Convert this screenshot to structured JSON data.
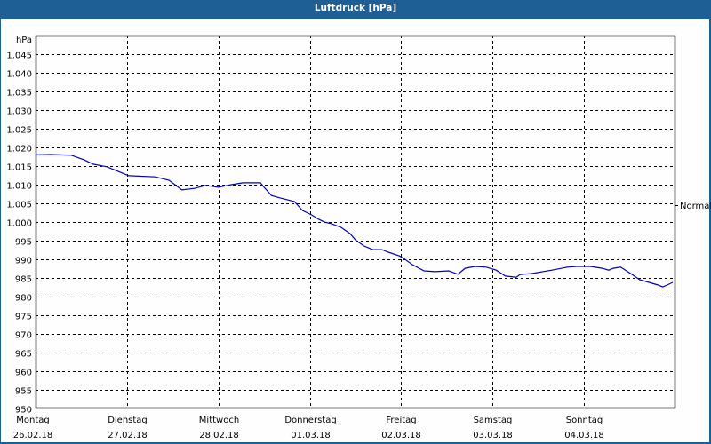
{
  "window": {
    "title": "Luftdruck [hPa]"
  },
  "chart": {
    "unit_label": "hPa",
    "reference_label": "Normal",
    "y_ticks": [
      "1.045",
      "1.040",
      "1.035",
      "1.030",
      "1.025",
      "1.020",
      "1.015",
      "1.010",
      "1.005",
      "1.000",
      "995",
      "990",
      "985",
      "980",
      "975",
      "970",
      "965",
      "960",
      "955",
      "950"
    ],
    "x_ticks": [
      {
        "day": "Montag",
        "date": "26.02.18"
      },
      {
        "day": "Dienstag",
        "date": "27.02.18"
      },
      {
        "day": "Mittwoch",
        "date": "28.02.18"
      },
      {
        "day": "Donnerstag",
        "date": "01.03.18"
      },
      {
        "day": "Freitag",
        "date": "02.03.18"
      },
      {
        "day": "Samstag",
        "date": "03.03.18"
      },
      {
        "day": "Sonntag",
        "date": "04.03.18"
      }
    ],
    "line_color": "#0000c0"
  },
  "chart_data": {
    "type": "line",
    "title": "Luftdruck [hPa]",
    "xlabel": "",
    "ylabel": "hPa",
    "ylim": [
      950,
      1050
    ],
    "grid": true,
    "annotations": [
      {
        "label": "Normal",
        "y": 1001
      }
    ],
    "x_tick_labels": [
      "Montag 26.02.18",
      "Dienstag 27.02.18",
      "Mittwoch 28.02.18",
      "Donnerstag 01.03.18",
      "Freitag 02.03.18",
      "Samstag 03.03.18",
      "Sonntag 04.03.18"
    ],
    "series": [
      {
        "name": "Luftdruck",
        "x_days": [
          0.0,
          0.17,
          0.39,
          0.53,
          0.63,
          0.78,
          0.97,
          1.02,
          1.31,
          1.46,
          1.6,
          1.74,
          1.86,
          2.0,
          2.14,
          2.27,
          2.46,
          2.5,
          2.58,
          2.68,
          2.83,
          2.92,
          3.02,
          3.1,
          3.16,
          3.24,
          3.34,
          3.44,
          3.5,
          3.59,
          3.69,
          3.79,
          3.86,
          3.98,
          4.03,
          4.12,
          4.25,
          4.37,
          4.52,
          4.62,
          4.7,
          4.81,
          4.93,
          5.04,
          5.14,
          5.26,
          5.3,
          5.43,
          5.65,
          5.82,
          5.92,
          6.07,
          6.2,
          6.27,
          6.32,
          6.4,
          6.51,
          6.61,
          6.71,
          6.81,
          6.86,
          6.91,
          6.97
        ],
        "values": [
          1018.0,
          1018.1,
          1017.9,
          1016.7,
          1015.5,
          1014.8,
          1012.9,
          1012.4,
          1012.1,
          1011.2,
          1008.6,
          1009.0,
          1009.8,
          1009.3,
          1010.0,
          1010.5,
          1010.5,
          1009.3,
          1007.1,
          1006.4,
          1005.5,
          1003.1,
          1001.9,
          1000.7,
          1000.0,
          999.5,
          998.6,
          996.9,
          995.2,
          993.6,
          992.6,
          992.6,
          991.9,
          990.9,
          990.2,
          988.6,
          986.9,
          986.7,
          986.9,
          986.0,
          987.6,
          988.1,
          987.9,
          987.1,
          985.5,
          985.2,
          985.9,
          986.2,
          987.1,
          987.9,
          988.1,
          988.1,
          987.6,
          987.1,
          987.6,
          987.9,
          986.2,
          984.5,
          983.8,
          983.1,
          982.6,
          983.1,
          983.8
        ]
      }
    ]
  }
}
